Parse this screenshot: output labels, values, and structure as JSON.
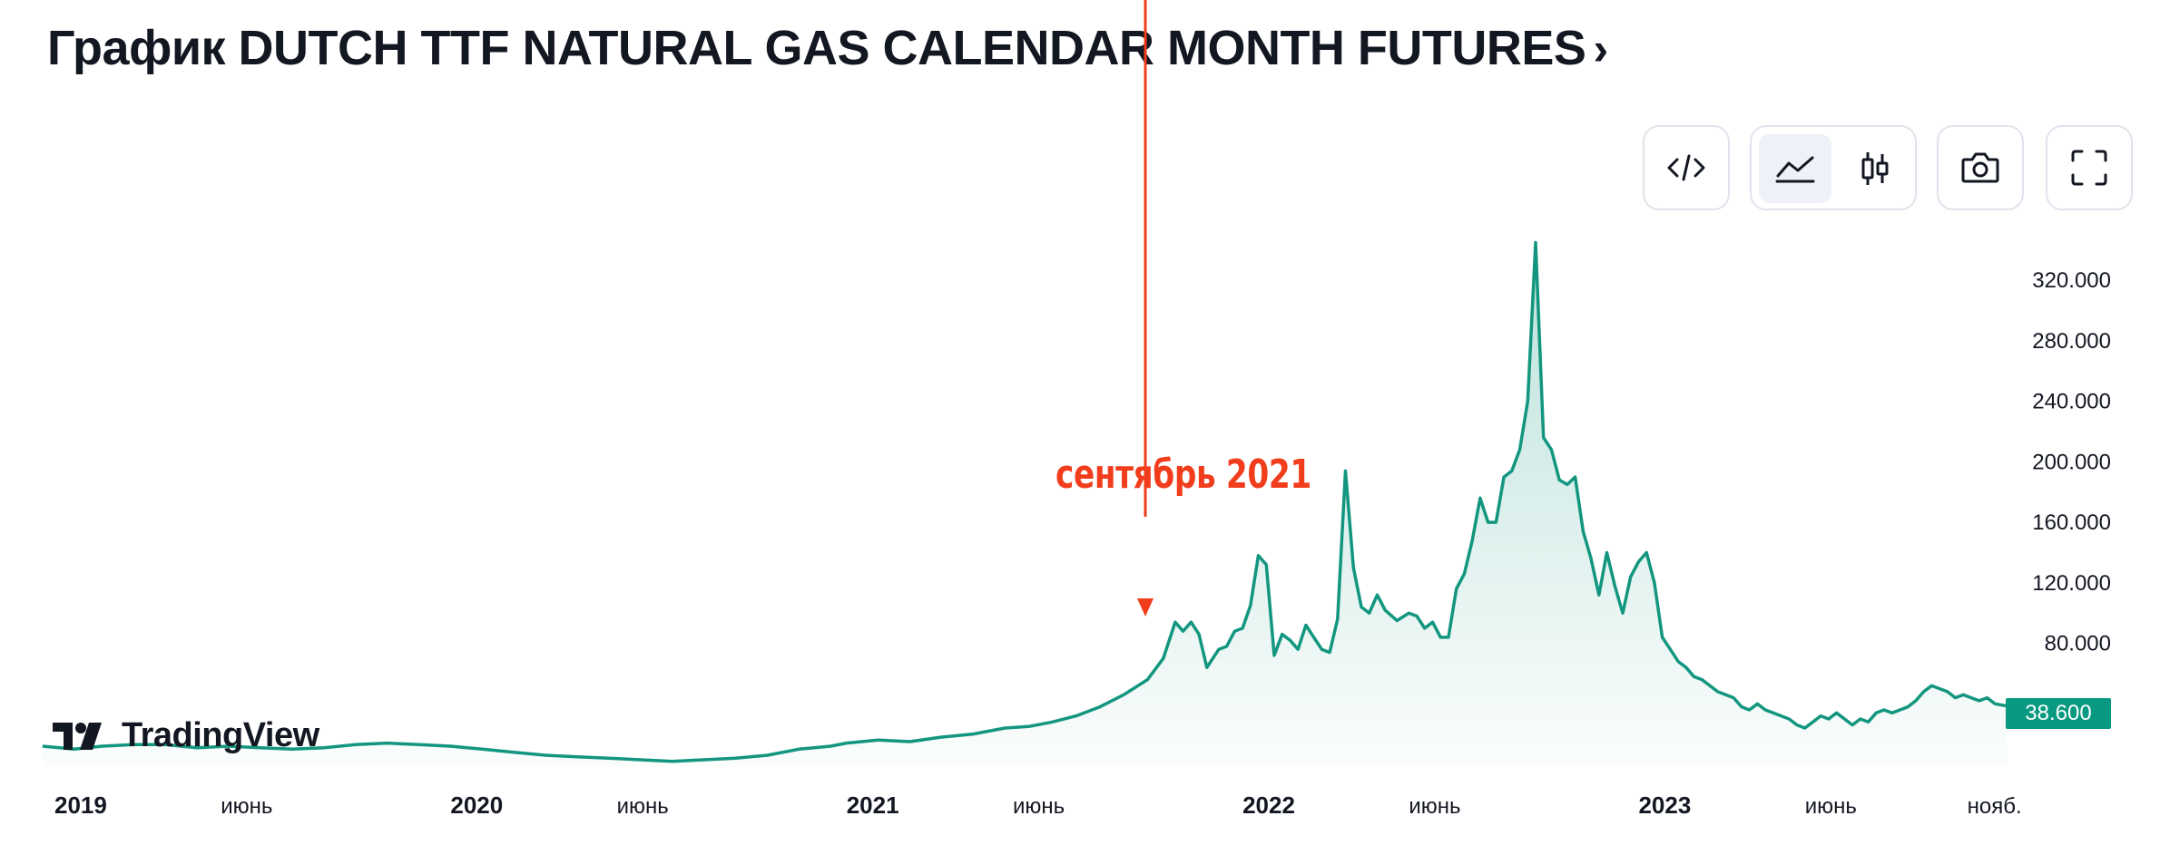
{
  "header": {
    "title": "График DUTCH TTF NATURAL GAS CALENDAR MONTH FUTURES",
    "chevron": "›"
  },
  "toolbar": {
    "embed_icon": "code-icon",
    "area_chart_icon": "area-chart-icon",
    "candles_icon": "candlestick-icon",
    "snapshot_icon": "camera-icon",
    "fullscreen_icon": "fullscreen-icon",
    "active_view": "area"
  },
  "annotation": {
    "label": "сентябрь 2021"
  },
  "branding": {
    "logo_text": "TradingView"
  },
  "price_badge": {
    "value": "38.600",
    "color": "#089981"
  },
  "colors": {
    "line": "#13967f",
    "annotation": "#f23d1c",
    "axis_text": "#131722"
  },
  "chart_data": {
    "type": "area",
    "title": "",
    "xlabel": "",
    "ylabel": "",
    "ylim": [
      0,
      350
    ],
    "y_ticks": [
      "80.000",
      "120.000",
      "160.000",
      "200.000",
      "240.000",
      "280.000",
      "320.000"
    ],
    "y_tick_values": [
      80,
      120,
      160,
      200,
      240,
      280,
      320
    ],
    "x_ticks": [
      {
        "label": "2019",
        "x": 2019.0,
        "bold": true
      },
      {
        "label": "июнь",
        "x": 2019.42,
        "bold": false
      },
      {
        "label": "2020",
        "x": 2020.0,
        "bold": true
      },
      {
        "label": "июнь",
        "x": 2020.42,
        "bold": false
      },
      {
        "label": "2021",
        "x": 2021.0,
        "bold": true
      },
      {
        "label": "июнь",
        "x": 2021.42,
        "bold": false
      },
      {
        "label": "2022",
        "x": 2022.0,
        "bold": true
      },
      {
        "label": "июнь",
        "x": 2022.42,
        "bold": false
      },
      {
        "label": "2023",
        "x": 2023.0,
        "bold": true
      },
      {
        "label": "июнь",
        "x": 2023.42,
        "bold": false
      },
      {
        "label": "нояб.",
        "x": 2023.83,
        "bold": false
      }
    ],
    "xlim": [
      2019.0,
      2023.95
    ],
    "grid": false,
    "series": [
      {
        "points": [
          [
            2018.97,
            12
          ],
          [
            2019.05,
            10
          ],
          [
            2019.12,
            12
          ],
          [
            2019.2,
            13
          ],
          [
            2019.28,
            13
          ],
          [
            2019.36,
            11
          ],
          [
            2019.44,
            12
          ],
          [
            2019.52,
            11
          ],
          [
            2019.6,
            10
          ],
          [
            2019.68,
            11
          ],
          [
            2019.76,
            13
          ],
          [
            2019.84,
            14
          ],
          [
            2019.92,
            13
          ],
          [
            2020.0,
            12
          ],
          [
            2020.08,
            10
          ],
          [
            2020.16,
            8
          ],
          [
            2020.24,
            6
          ],
          [
            2020.32,
            5
          ],
          [
            2020.4,
            4
          ],
          [
            2020.48,
            3
          ],
          [
            2020.56,
            2
          ],
          [
            2020.64,
            3
          ],
          [
            2020.72,
            4
          ],
          [
            2020.8,
            6
          ],
          [
            2020.88,
            10
          ],
          [
            2020.96,
            12
          ],
          [
            2021.0,
            14
          ],
          [
            2021.08,
            16
          ],
          [
            2021.16,
            15
          ],
          [
            2021.24,
            18
          ],
          [
            2021.32,
            20
          ],
          [
            2021.4,
            24
          ],
          [
            2021.46,
            25
          ],
          [
            2021.52,
            28
          ],
          [
            2021.58,
            32
          ],
          [
            2021.64,
            38
          ],
          [
            2021.7,
            46
          ],
          [
            2021.76,
            56
          ],
          [
            2021.8,
            70
          ],
          [
            2021.83,
            94
          ],
          [
            2021.85,
            88
          ],
          [
            2021.87,
            94
          ],
          [
            2021.89,
            86
          ],
          [
            2021.91,
            64
          ],
          [
            2021.94,
            76
          ],
          [
            2021.96,
            78
          ],
          [
            2021.98,
            88
          ],
          [
            2022.0,
            90
          ],
          [
            2022.02,
            105
          ],
          [
            2022.04,
            138
          ],
          [
            2022.06,
            132
          ],
          [
            2022.08,
            72
          ],
          [
            2022.1,
            86
          ],
          [
            2022.12,
            82
          ],
          [
            2022.14,
            76
          ],
          [
            2022.16,
            92
          ],
          [
            2022.18,
            84
          ],
          [
            2022.2,
            76
          ],
          [
            2022.22,
            74
          ],
          [
            2022.24,
            96
          ],
          [
            2022.26,
            194
          ],
          [
            2022.28,
            130
          ],
          [
            2022.3,
            104
          ],
          [
            2022.32,
            100
          ],
          [
            2022.34,
            112
          ],
          [
            2022.36,
            102
          ],
          [
            2022.39,
            95
          ],
          [
            2022.42,
            100
          ],
          [
            2022.44,
            98
          ],
          [
            2022.46,
            90
          ],
          [
            2022.48,
            94
          ],
          [
            2022.5,
            84
          ],
          [
            2022.52,
            84
          ],
          [
            2022.54,
            116
          ],
          [
            2022.56,
            126
          ],
          [
            2022.58,
            148
          ],
          [
            2022.6,
            176
          ],
          [
            2022.62,
            160
          ],
          [
            2022.64,
            160
          ],
          [
            2022.66,
            190
          ],
          [
            2022.68,
            194
          ],
          [
            2022.7,
            208
          ],
          [
            2022.72,
            240
          ],
          [
            2022.74,
            345
          ],
          [
            2022.76,
            216
          ],
          [
            2022.78,
            208
          ],
          [
            2022.8,
            188
          ],
          [
            2022.82,
            185
          ],
          [
            2022.84,
            190
          ],
          [
            2022.86,
            154
          ],
          [
            2022.88,
            136
          ],
          [
            2022.9,
            112
          ],
          [
            2022.92,
            140
          ],
          [
            2022.94,
            118
          ],
          [
            2022.96,
            100
          ],
          [
            2022.98,
            124
          ],
          [
            2023.0,
            134
          ],
          [
            2023.02,
            140
          ],
          [
            2023.04,
            120
          ],
          [
            2023.06,
            84
          ],
          [
            2023.08,
            76
          ],
          [
            2023.1,
            68
          ],
          [
            2023.12,
            64
          ],
          [
            2023.14,
            58
          ],
          [
            2023.16,
            56
          ],
          [
            2023.18,
            52
          ],
          [
            2023.2,
            48
          ],
          [
            2023.22,
            46
          ],
          [
            2023.24,
            44
          ],
          [
            2023.26,
            38
          ],
          [
            2023.28,
            36
          ],
          [
            2023.3,
            40
          ],
          [
            2023.32,
            36
          ],
          [
            2023.34,
            34
          ],
          [
            2023.36,
            32
          ],
          [
            2023.38,
            30
          ],
          [
            2023.4,
            26
          ],
          [
            2023.42,
            24
          ],
          [
            2023.44,
            28
          ],
          [
            2023.46,
            32
          ],
          [
            2023.48,
            30
          ],
          [
            2023.5,
            34
          ],
          [
            2023.52,
            30
          ],
          [
            2023.54,
            26
          ],
          [
            2023.56,
            30
          ],
          [
            2023.58,
            28
          ],
          [
            2023.6,
            34
          ],
          [
            2023.62,
            36
          ],
          [
            2023.64,
            34
          ],
          [
            2023.66,
            36
          ],
          [
            2023.68,
            38
          ],
          [
            2023.7,
            42
          ],
          [
            2023.72,
            48
          ],
          [
            2023.74,
            52
          ],
          [
            2023.76,
            50
          ],
          [
            2023.78,
            48
          ],
          [
            2023.8,
            44
          ],
          [
            2023.82,
            46
          ],
          [
            2023.84,
            44
          ],
          [
            2023.86,
            42
          ],
          [
            2023.88,
            44
          ],
          [
            2023.9,
            40
          ],
          [
            2023.93,
            38.6
          ]
        ]
      }
    ],
    "last_value": 38.6
  }
}
